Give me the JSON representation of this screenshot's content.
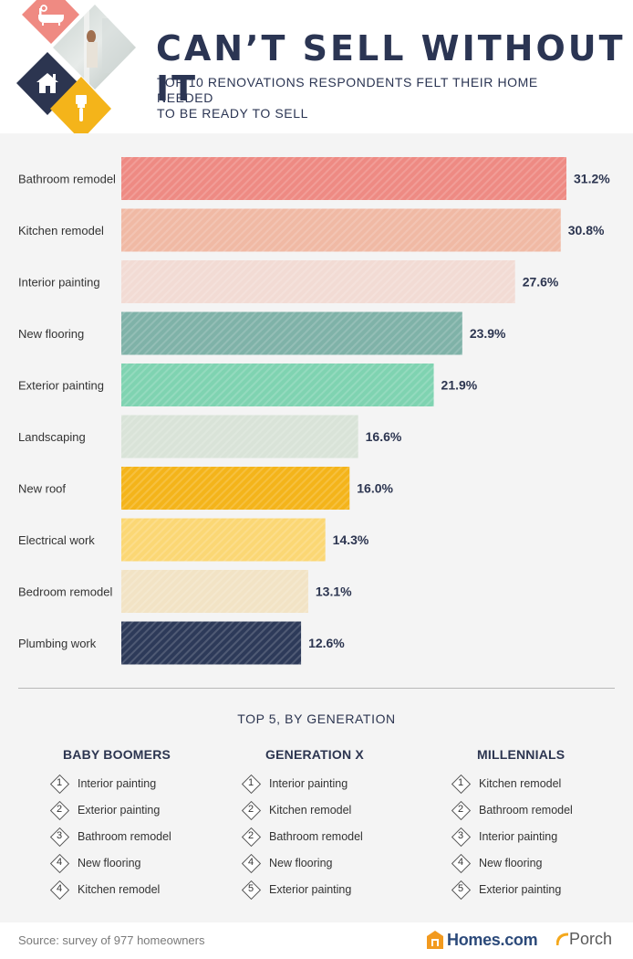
{
  "header": {
    "title": "CAN’T SELL WITHOUT IT",
    "subtitle_line1": "TOP 10 RENOVATIONS RESPONDENTS FELT THEIR HOME NEEDED",
    "subtitle_line2": "TO BE READY TO SELL",
    "icons": [
      "bathtub-icon",
      "photo-tile",
      "house-icon",
      "paintbrush-icon"
    ]
  },
  "chart_data": {
    "type": "bar",
    "orientation": "horizontal",
    "title": "CAN’T SELL WITHOUT IT",
    "subtitle": "TOP 10 RENOVATIONS RESPONDENTS FELT THEIR HOME NEEDED TO BE READY TO SELL",
    "categories": [
      "Bathroom remodel",
      "Kitchen remodel",
      "Interior painting",
      "New flooring",
      "Exterior painting",
      "Landscaping",
      "New roof",
      "Electrical work",
      "Bedroom remodel",
      "Plumbing work"
    ],
    "values": [
      31.2,
      30.8,
      27.6,
      23.9,
      21.9,
      16.6,
      16.0,
      14.3,
      13.1,
      12.6
    ],
    "value_labels": [
      "31.2%",
      "30.8%",
      "27.6%",
      "23.9%",
      "21.9%",
      "16.6%",
      "16.0%",
      "14.3%",
      "13.1%",
      "12.6%"
    ],
    "colors": [
      "#ee8a83",
      "#f0b9a4",
      "#f2dbd4",
      "#7fb2a8",
      "#7fd3b1",
      "#d9e3d8",
      "#f4b41a",
      "#fbd774",
      "#f2e3c5",
      "#2d3a59"
    ],
    "xlim": [
      0,
      31.2
    ],
    "grid": false,
    "legend": "none"
  },
  "generations": {
    "title": "TOP 5, BY GENERATION",
    "columns": [
      {
        "name": "BABY BOOMERS",
        "items": [
          {
            "rank": "1",
            "label": "Interior painting"
          },
          {
            "rank": "2",
            "label": "Exterior painting"
          },
          {
            "rank": "3",
            "label": "Bathroom remodel"
          },
          {
            "rank": "4",
            "label": "New flooring"
          },
          {
            "rank": "4",
            "label": "Kitchen remodel"
          }
        ]
      },
      {
        "name": "GENERATION X",
        "items": [
          {
            "rank": "1",
            "label": "Interior painting"
          },
          {
            "rank": "2",
            "label": "Kitchen remodel"
          },
          {
            "rank": "2",
            "label": "Bathroom remodel"
          },
          {
            "rank": "4",
            "label": "New flooring"
          },
          {
            "rank": "5",
            "label": "Exterior painting"
          }
        ]
      },
      {
        "name": "MILLENNIALS",
        "items": [
          {
            "rank": "1",
            "label": "Kitchen remodel"
          },
          {
            "rank": "2",
            "label": "Bathroom remodel"
          },
          {
            "rank": "3",
            "label": "Interior painting"
          },
          {
            "rank": "4",
            "label": "New flooring"
          },
          {
            "rank": "5",
            "label": "Exterior painting"
          }
        ]
      }
    ]
  },
  "footer": {
    "source": "Source: survey of 977 homeowners",
    "homes_logo": "Homes.com",
    "porch_logo": "Porch"
  }
}
